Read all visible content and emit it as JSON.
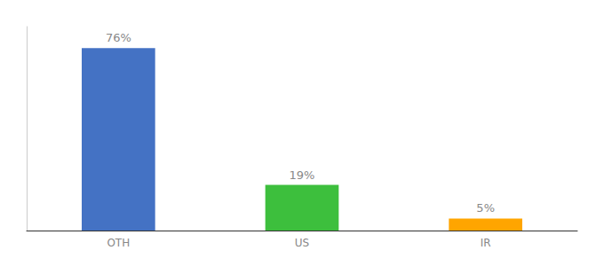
{
  "chart_data": {
    "type": "bar",
    "categories": [
      "OTH",
      "US",
      "IR"
    ],
    "values": [
      76,
      19,
      5
    ],
    "value_labels": [
      "76%",
      "19%",
      "5%"
    ],
    "colors": [
      "#4472C4",
      "#3DBF3D",
      "#FFA500"
    ],
    "ylim": [
      0,
      85
    ],
    "grid": false,
    "data_labels": true,
    "tick_labels": "x"
  }
}
